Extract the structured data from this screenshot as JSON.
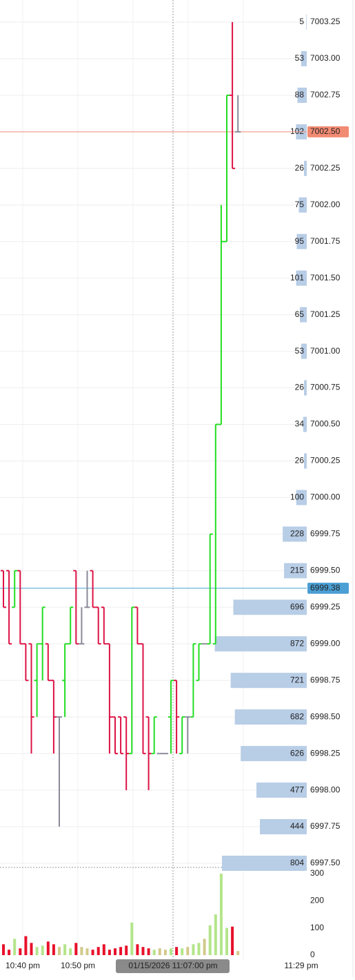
{
  "chart_data": {
    "type": "ohlc",
    "up_color": "#22dd22",
    "down_color": "#dd1144",
    "flat_color": "#8a8a99",
    "ylim": [
      6997.5,
      7003.25
    ],
    "yticks": [
      7003.25,
      {
        "value": 7003,
        "label": "7003.00"
      },
      7002.75,
      {
        "value": 7002.5,
        "label": "7002.50"
      },
      7002.25,
      {
        "value": 7002,
        "label": "7002.00"
      },
      7001.75,
      {
        "value": 7001.5,
        "label": "7001.50"
      },
      7001.25,
      {
        "value": 7001,
        "label": "7001.00"
      },
      7000.75,
      {
        "value": 7000.5,
        "label": "7000.50"
      },
      7000.25,
      {
        "value": 7000,
        "label": "7000.00"
      },
      6999.75,
      {
        "value": 6999.5,
        "label": "6999.50"
      },
      6999.25,
      {
        "value": 6999,
        "label": "6999.00"
      },
      6998.75,
      {
        "value": 6998.5,
        "label": "6998.50"
      },
      6998.25,
      {
        "value": 6998,
        "label": "6998.00"
      },
      6997.75,
      {
        "value": 6997.5,
        "label": "6997.50"
      }
    ],
    "open": [
      6999.5,
      6999.5,
      6999.25,
      6999.5,
      6999,
      6999,
      6998.75,
      6999,
      6999,
      6998.75,
      6998.5,
      6998.75,
      6999,
      6999.5,
      6999,
      6999.25,
      6999.5,
      6999.25,
      6999.25,
      6999,
      6998.5,
      6998.5,
      6998.5,
      6998.25,
      6999.25,
      6999,
      6998.5,
      6998.25,
      6998.25,
      6998.25,
      6998.5,
      6998.75,
      6998.25,
      6998.5,
      6998.5,
      6998.75,
      6999,
      6999,
      6999,
      7000.5,
      7001.75,
      7002.75,
      7002.5
    ],
    "high": [
      6999.5,
      6999.5,
      6999.5,
      6999.5,
      6999,
      6999,
      6999,
      6999.25,
      6999,
      6998.75,
      6998.5,
      6999,
      6999.25,
      6999.5,
      6999.25,
      6999.5,
      6999.5,
      6999.25,
      6999.25,
      6999,
      6998.5,
      6998.5,
      6998.5,
      6999.25,
      6999.25,
      6999,
      6998.5,
      6998.5,
      6998.25,
      6998.25,
      6998.75,
      6998.75,
      6998.5,
      6998.5,
      6999,
      6999,
      6999,
      6999.75,
      7000.5,
      7002,
      7002.75,
      7003.25,
      7002.75
    ],
    "low": [
      6999.25,
      6999,
      6999.25,
      6999,
      6998.75,
      6998.25,
      6998.5,
      6998.75,
      6998.75,
      6998.25,
      6997.75,
      6998.5,
      6999,
      6999,
      6999,
      6999.25,
      6999.25,
      6999,
      6999,
      6998.25,
      6998.25,
      6998.25,
      6998,
      6998.25,
      6999,
      6998.25,
      6998,
      6998.25,
      6998.25,
      6998.25,
      6998.25,
      6998.25,
      6998.25,
      6998.25,
      6998.5,
      6998.75,
      6999,
      6999,
      6999,
      7000.5,
      7001.75,
      7002.25,
      7002.5
    ],
    "close": [
      6999.25,
      6999,
      6999.5,
      6999,
      6998.75,
      6998.5,
      6999,
      6999.25,
      6998.75,
      6998.5,
      6998.5,
      6999,
      6999.25,
      6999,
      6999,
      6999.25,
      6999.25,
      6999,
      6999,
      6998.5,
      6998.25,
      6998.25,
      6998.25,
      6999.25,
      6999,
      6998.25,
      6998.25,
      6998.5,
      6998.25,
      6998.25,
      6998.75,
      6998.5,
      6998.5,
      6998.5,
      6999,
      6999,
      6999,
      6999.75,
      7000.5,
      7001.75,
      7002.75,
      7002.25,
      7002.5
    ],
    "volume": [
      40,
      20,
      60,
      25,
      70,
      45,
      30,
      35,
      50,
      40,
      30,
      40,
      25,
      45,
      30,
      25,
      20,
      30,
      40,
      20,
      25,
      30,
      35,
      120,
      40,
      30,
      25,
      20,
      25,
      20,
      25,
      30,
      25,
      30,
      40,
      45,
      60,
      110,
      150,
      300,
      100,
      105,
      15
    ],
    "volume_colors": {
      "up": "#b4e58a",
      "down": "#e8102a",
      "flat": "#d2c98a"
    },
    "volume_ylim": [
      0,
      300
    ],
    "volume_yticks": [
      0,
      100,
      200,
      300
    ],
    "profile": {
      "prices": [
        7003.25,
        7003,
        7002.75,
        7002.5,
        7002.25,
        7002,
        7001.75,
        7001.5,
        7001.25,
        7001,
        7000.75,
        7000.5,
        7000.25,
        7000,
        6999.75,
        6999.5,
        6999.25,
        6999,
        6998.75,
        6998.5,
        6998.25,
        6998,
        6997.75,
        6997.5
      ],
      "values": [
        5,
        53,
        88,
        102,
        26,
        75,
        95,
        101,
        65,
        53,
        26,
        34,
        26,
        100,
        228,
        215,
        696,
        872,
        721,
        682,
        626,
        477,
        444,
        804
      ],
      "color": "#b8cde6"
    },
    "last_price": {
      "value": 7002.5,
      "label": "7002.50",
      "color": "#f28b73"
    },
    "crosshair_price": {
      "value": 6999.38,
      "color": "#4a9fd4"
    },
    "crosshair_time": "01/15/2026 11:07:00 pm",
    "time_labels": [
      "10:40 pm",
      "10:50 pm",
      "11:29 pm"
    ]
  }
}
